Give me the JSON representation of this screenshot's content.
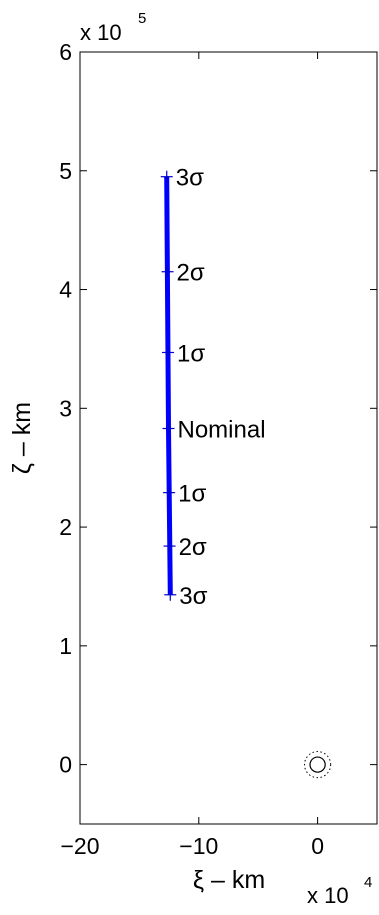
{
  "chart_data": {
    "type": "line",
    "xlabel": "ξ – km",
    "ylabel": "ζ – km",
    "x_multiplier": {
      "base": "x 10",
      "exponent": "4"
    },
    "y_multiplier": {
      "base": "x 10",
      "exponent": "5"
    },
    "xlim": [
      -200000,
      50000
    ],
    "ylim": [
      -50000,
      600000
    ],
    "xticks": [
      {
        "value": -200000,
        "label": "−20"
      },
      {
        "value": -100000,
        "label": "−10"
      },
      {
        "value": 0,
        "label": "0"
      }
    ],
    "yticks": [
      {
        "value": 0,
        "label": "0"
      },
      {
        "value": 100000,
        "label": "1"
      },
      {
        "value": 200000,
        "label": "2"
      },
      {
        "value": 300000,
        "label": "3"
      },
      {
        "value": 400000,
        "label": "4"
      },
      {
        "value": 500000,
        "label": "5"
      },
      {
        "value": 600000,
        "label": "6"
      }
    ],
    "grid": false,
    "series": [
      {
        "color": "#0000ff",
        "points": [
          {
            "x": -124000,
            "y": 143000
          },
          {
            "x": -125500,
            "y": 283000
          },
          {
            "x": -127000,
            "y": 495000
          }
        ]
      }
    ],
    "markers": [
      {
        "x": -127000,
        "y": 495000,
        "label": "3σ"
      },
      {
        "x": -126300,
        "y": 415000,
        "label": "2σ"
      },
      {
        "x": -125900,
        "y": 347000,
        "label": "1σ"
      },
      {
        "x": -125500,
        "y": 283000,
        "label": "Nominal"
      },
      {
        "x": -125000,
        "y": 229000,
        "label": "1σ"
      },
      {
        "x": -124600,
        "y": 184000,
        "label": "2σ"
      },
      {
        "x": -124000,
        "y": 143000,
        "label": "3σ"
      }
    ],
    "target": {
      "x": 0,
      "y": 0,
      "inner_radius_km": 6378,
      "outer_radius_km": 11000
    }
  }
}
